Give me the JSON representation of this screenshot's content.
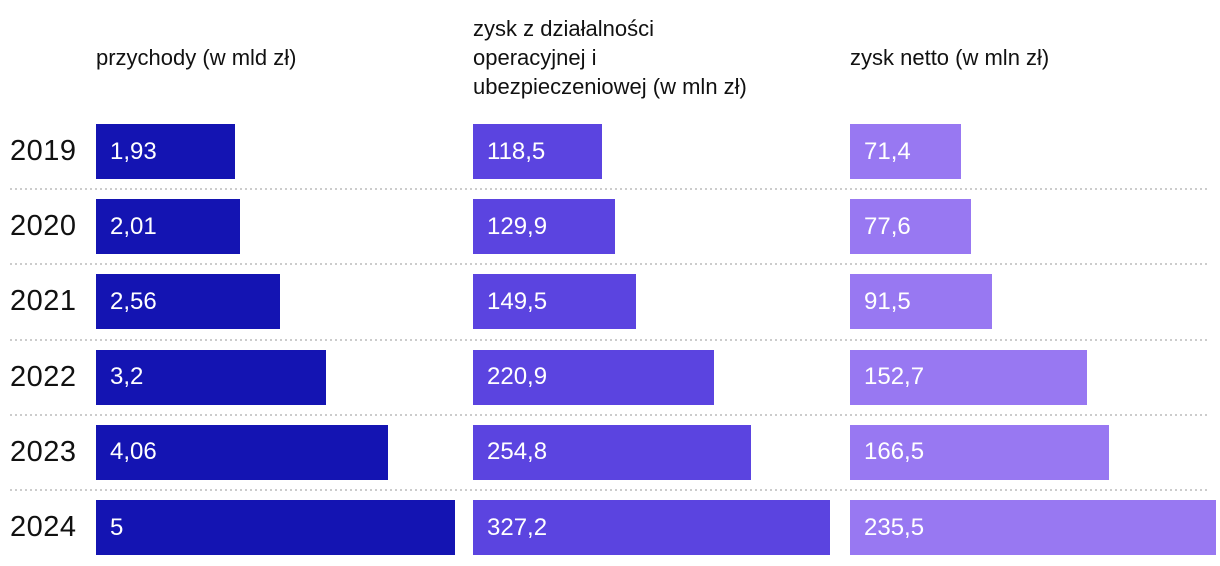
{
  "chart_data": {
    "type": "bar",
    "orientation": "horizontal",
    "categories": [
      "2019",
      "2020",
      "2021",
      "2022",
      "2023",
      "2024"
    ],
    "series": [
      {
        "name": "przychody (w mld zł)",
        "color": "#1414b2",
        "values": [
          1.93,
          2.01,
          2.56,
          3.2,
          4.06,
          5
        ],
        "labels": [
          "1,93",
          "2,01",
          "2,56",
          "3,2",
          "4,06",
          "5"
        ]
      },
      {
        "name": "zysk z działalności\noperacyjnej i\nubezpieczeniowej (w mln zł)",
        "color": "#5b44e0",
        "values": [
          118.5,
          129.9,
          149.5,
          220.9,
          254.8,
          327.2
        ],
        "labels": [
          "118,5",
          "129,9",
          "149,5",
          "220,9",
          "254,8",
          "327,2"
        ]
      },
      {
        "name": "zysk netto (w mln zł)",
        "color": "#9878f2",
        "values": [
          71.4,
          77.6,
          91.5,
          152.7,
          166.5,
          235.5
        ],
        "labels": [
          "71,4",
          "77,6",
          "91,5",
          "152,7",
          "166,5",
          "235,5"
        ]
      }
    ],
    "legend_position": "top",
    "grid": "dotted-row-separators",
    "row_label_column": "year",
    "text_color": "#111111",
    "bar_label_color": "#ffffff",
    "separator_color": "#cccccc"
  }
}
